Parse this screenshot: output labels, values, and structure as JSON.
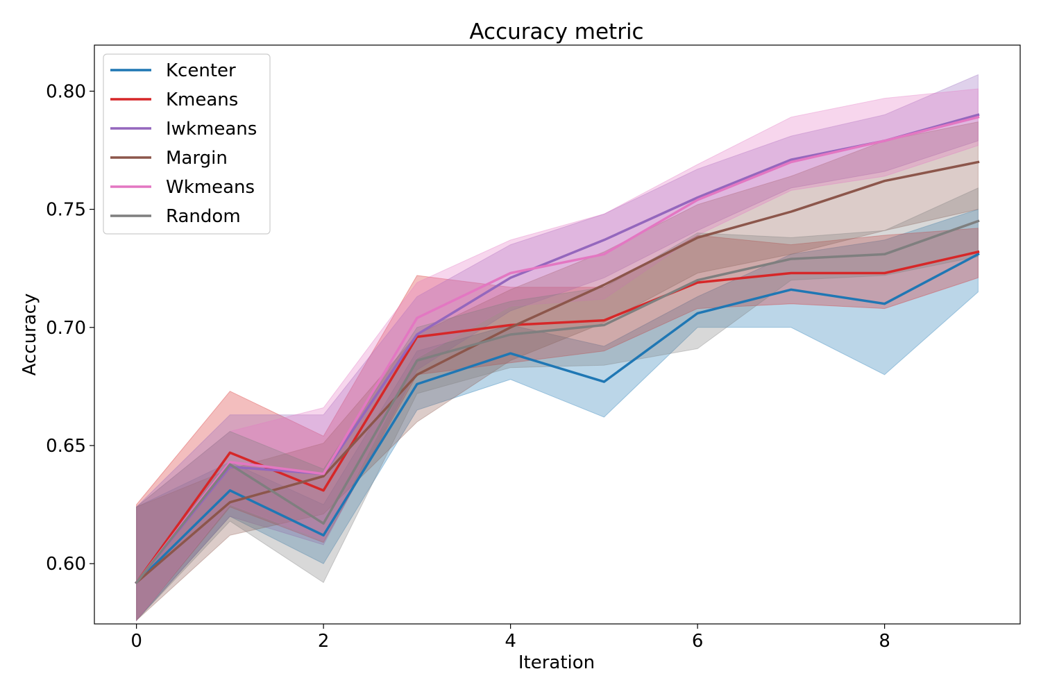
{
  "chart_data": {
    "type": "line",
    "title": "Accuracy metric",
    "xlabel": "Iteration",
    "ylabel": "Accuracy",
    "xlim": [
      -0.45,
      9.45
    ],
    "ylim": [
      0.5745,
      0.8195
    ],
    "x_ticks": [
      0,
      2,
      4,
      6,
      8
    ],
    "x_tick_labels": [
      "0",
      "2",
      "4",
      "6",
      "8"
    ],
    "y_ticks": [
      0.6,
      0.65,
      0.7,
      0.75,
      0.8
    ],
    "y_tick_labels": [
      "0.60",
      "0.65",
      "0.70",
      "0.75",
      "0.80"
    ],
    "grid": false,
    "legend_position": "upper-left",
    "x": [
      0,
      1,
      2,
      3,
      4,
      5,
      6,
      7,
      8,
      9
    ],
    "series": [
      {
        "name": "Kcenter",
        "color": "#1f77b4",
        "values": [
          0.592,
          0.631,
          0.612,
          0.676,
          0.689,
          0.677,
          0.706,
          0.716,
          0.71,
          0.731
        ],
        "lower": [
          0.576,
          0.62,
          0.6,
          0.665,
          0.678,
          0.662,
          0.7,
          0.7,
          0.68,
          0.715
        ],
        "upper": [
          0.624,
          0.643,
          0.625,
          0.69,
          0.701,
          0.692,
          0.713,
          0.731,
          0.737,
          0.75
        ]
      },
      {
        "name": "Kmeans",
        "color": "#d62728",
        "values": [
          0.592,
          0.647,
          0.631,
          0.696,
          0.701,
          0.703,
          0.719,
          0.723,
          0.723,
          0.732
        ],
        "lower": [
          0.576,
          0.624,
          0.609,
          0.68,
          0.685,
          0.69,
          0.708,
          0.71,
          0.708,
          0.721
        ],
        "upper": [
          0.625,
          0.673,
          0.654,
          0.722,
          0.717,
          0.717,
          0.739,
          0.735,
          0.739,
          0.742
        ]
      },
      {
        "name": "Iwkmeans",
        "color": "#9467bd",
        "values": [
          0.592,
          0.641,
          0.638,
          0.697,
          0.721,
          0.737,
          0.755,
          0.771,
          0.779,
          0.79
        ],
        "lower": [
          0.576,
          0.62,
          0.608,
          0.682,
          0.707,
          0.721,
          0.741,
          0.759,
          0.766,
          0.779
        ],
        "upper": [
          0.624,
          0.663,
          0.663,
          0.713,
          0.735,
          0.748,
          0.767,
          0.781,
          0.79,
          0.807
        ]
      },
      {
        "name": "Margin",
        "color": "#8c564b",
        "values": [
          0.592,
          0.626,
          0.637,
          0.68,
          0.7,
          0.718,
          0.738,
          0.749,
          0.762,
          0.77
        ],
        "lower": [
          0.576,
          0.612,
          0.621,
          0.66,
          0.686,
          0.702,
          0.723,
          0.731,
          0.741,
          0.75
        ],
        "upper": [
          0.624,
          0.64,
          0.651,
          0.697,
          0.716,
          0.732,
          0.752,
          0.764,
          0.779,
          0.787
        ]
      },
      {
        "name": "Wkmeans",
        "color": "#e377c2",
        "values": [
          0.592,
          0.643,
          0.638,
          0.704,
          0.723,
          0.731,
          0.754,
          0.77,
          0.779,
          0.789
        ],
        "lower": [
          0.576,
          0.625,
          0.61,
          0.687,
          0.709,
          0.712,
          0.739,
          0.758,
          0.764,
          0.777
        ],
        "upper": [
          0.624,
          0.656,
          0.666,
          0.719,
          0.737,
          0.748,
          0.769,
          0.789,
          0.797,
          0.801
        ]
      },
      {
        "name": "Random",
        "color": "#7f7f7f",
        "values": [
          0.592,
          0.642,
          0.617,
          0.686,
          0.697,
          0.701,
          0.72,
          0.729,
          0.731,
          0.745
        ],
        "lower": [
          0.576,
          0.618,
          0.592,
          0.672,
          0.683,
          0.684,
          0.691,
          0.72,
          0.722,
          0.73
        ],
        "upper": [
          0.624,
          0.656,
          0.64,
          0.7,
          0.711,
          0.717,
          0.74,
          0.738,
          0.741,
          0.759
        ]
      }
    ]
  }
}
